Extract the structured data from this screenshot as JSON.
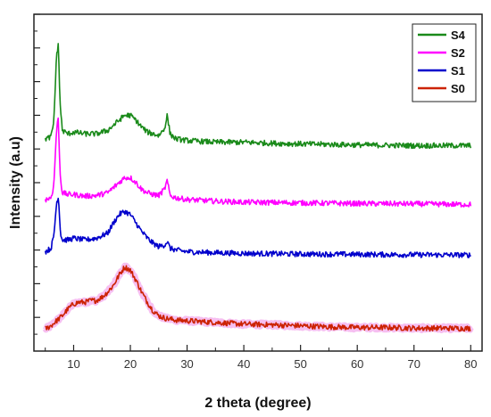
{
  "chart_data": {
    "type": "line",
    "title": "",
    "xlabel": "2 theta (degree)",
    "ylabel": "Intensity (a.u)",
    "xlim": [
      3,
      82
    ],
    "x_ticks": [
      10,
      20,
      30,
      40,
      50,
      60,
      70,
      80
    ],
    "ylim": [
      0,
      10
    ],
    "y_ticks_labeled": false,
    "grid": false,
    "legend_position": "top-right",
    "colors": {
      "S4": "#1a8a1a",
      "S2": "#ff00ff",
      "S1": "#0000cc",
      "S0": "#cc2200",
      "S0_halo": "#f5b8f0"
    },
    "series": [
      {
        "name": "S4",
        "x": [
          5,
          6,
          6.5,
          7,
          7.3,
          7.6,
          8,
          9,
          10,
          12,
          14,
          16,
          17,
          18,
          19,
          20,
          21,
          22,
          23,
          24,
          25,
          26,
          26.5,
          27,
          28,
          30,
          35,
          40,
          45,
          50,
          60,
          70,
          80
        ],
        "y": [
          6.3,
          6.35,
          6.8,
          8.8,
          9.1,
          7.4,
          6.55,
          6.45,
          6.5,
          6.45,
          6.45,
          6.55,
          6.7,
          6.85,
          7.0,
          7.0,
          6.85,
          6.65,
          6.5,
          6.45,
          6.4,
          6.6,
          7.0,
          6.45,
          6.3,
          6.25,
          6.2,
          6.2,
          6.17,
          6.15,
          6.12,
          6.1,
          6.1
        ]
      },
      {
        "name": "S2",
        "x": [
          5,
          6,
          6.5,
          7,
          7.3,
          7.6,
          8,
          9,
          10,
          12,
          14,
          16,
          17,
          18,
          19,
          20,
          21,
          22,
          23,
          24,
          25,
          26,
          26.5,
          27,
          28,
          30,
          35,
          40,
          50,
          60,
          70,
          80
        ],
        "y": [
          4.5,
          4.55,
          4.9,
          6.6,
          6.9,
          5.3,
          4.7,
          4.65,
          4.65,
          4.6,
          4.62,
          4.7,
          4.85,
          5.0,
          5.15,
          5.15,
          5.0,
          4.8,
          4.7,
          4.65,
          4.62,
          4.8,
          5.05,
          4.62,
          4.55,
          4.5,
          4.45,
          4.42,
          4.4,
          4.38,
          4.37,
          4.35
        ]
      },
      {
        "name": "S1",
        "x": [
          5,
          6,
          6.5,
          7,
          7.3,
          7.7,
          8,
          9,
          10,
          12,
          14,
          16,
          17,
          18,
          19,
          20,
          21,
          22,
          23,
          24,
          25,
          26,
          26.5,
          27,
          28,
          30,
          35,
          40,
          50,
          60,
          70,
          80
        ],
        "y": [
          2.95,
          3.05,
          3.4,
          4.4,
          4.6,
          3.5,
          3.3,
          3.3,
          3.35,
          3.3,
          3.35,
          3.5,
          3.8,
          4.05,
          4.15,
          4.05,
          3.8,
          3.55,
          3.35,
          3.2,
          3.1,
          3.15,
          3.25,
          3.05,
          3.0,
          2.95,
          2.92,
          2.9,
          2.88,
          2.87,
          2.86,
          2.85
        ]
      },
      {
        "name": "S0",
        "x": [
          5,
          6,
          7,
          8,
          9,
          10,
          11,
          12,
          13,
          14,
          15,
          16,
          17,
          18,
          19,
          20,
          21,
          22,
          23,
          24,
          25,
          26,
          27,
          28,
          30,
          35,
          40,
          45,
          50,
          55,
          60,
          65,
          70,
          75,
          80
        ],
        "y": [
          0.65,
          0.75,
          0.9,
          1.05,
          1.25,
          1.4,
          1.45,
          1.45,
          1.5,
          1.5,
          1.6,
          1.75,
          1.95,
          2.25,
          2.5,
          2.4,
          2.1,
          1.75,
          1.45,
          1.2,
          1.05,
          0.98,
          0.95,
          0.92,
          0.9,
          0.85,
          0.8,
          0.78,
          0.75,
          0.72,
          0.7,
          0.7,
          0.68,
          0.68,
          0.67
        ]
      }
    ]
  }
}
